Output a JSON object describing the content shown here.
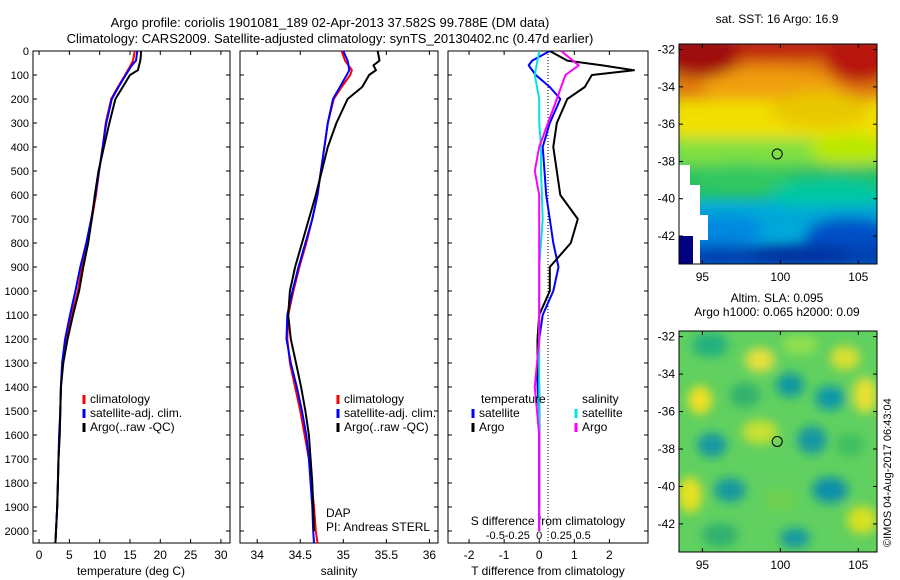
{
  "header": {
    "line1": "Argo profile: coriolis 1901081_189 02-Apr-2013 37.582S 99.788E (DM data)",
    "line2": "Climatology: CARS2009. Satellite-adjusted climatology: synTS_20130402.nc (0.47d earlier)"
  },
  "colors": {
    "climatology": "#ff0000",
    "satellite": "#0000ff",
    "argo": "#000000",
    "s_satellite": "#00e5e5",
    "s_argo": "#ff00ff"
  },
  "depth_axis": {
    "range": [
      0,
      2050
    ],
    "ticks": [
      0,
      100,
      200,
      300,
      400,
      500,
      600,
      700,
      800,
      900,
      1000,
      1100,
      1200,
      1300,
      1400,
      1500,
      1600,
      1700,
      1800,
      1900,
      2000
    ]
  },
  "chart_data": [
    {
      "id": "temperature",
      "type": "line",
      "xlabel": "temperature (deg C)",
      "xlim": [
        -1,
        31.5
      ],
      "xticks": [
        "0",
        "5",
        "10",
        "15",
        "20",
        "25",
        "30"
      ],
      "ylim": [
        0,
        2050
      ],
      "legend": [
        "climatology",
        "satellite-adj. clim.",
        "Argo(..raw -QC)"
      ],
      "series": [
        {
          "name": "climatology",
          "color": "#ff0000",
          "x": [
            15.8,
            15.5,
            15.1,
            14.2,
            13.0,
            11.9,
            11.0,
            10.5,
            9.9,
            9.4,
            8.7,
            7.9,
            7.1,
            6.4,
            5.4,
            4.5,
            3.9,
            3.6,
            3.5,
            3.4,
            3.2,
            3.1,
            3.0,
            2.8,
            2.7,
            2.6,
            2.5
          ],
          "y": [
            0,
            40,
            60,
            100,
            150,
            200,
            300,
            400,
            500,
            600,
            700,
            800,
            900,
            1000,
            1100,
            1200,
            1300,
            1400,
            1500,
            1600,
            1700,
            1800,
            1900,
            2000,
            2050,
            2060,
            2070
          ]
        },
        {
          "name": "satellite-adj. clim.",
          "color": "#0000ff",
          "x": [
            16.2,
            16.0,
            15.3,
            14.3,
            13.1,
            12.0,
            11.1,
            10.5,
            9.9,
            9.3,
            8.6,
            7.8,
            6.8,
            6.0,
            5.1,
            4.3,
            3.8,
            3.6,
            3.5,
            3.3,
            3.2,
            3.1,
            3.0,
            2.8,
            2.7
          ],
          "y": [
            0,
            40,
            60,
            100,
            150,
            200,
            300,
            400,
            500,
            600,
            700,
            800,
            900,
            1000,
            1100,
            1200,
            1300,
            1400,
            1500,
            1600,
            1700,
            1800,
            1900,
            2000,
            2050
          ]
        },
        {
          "name": "Argo(..raw -QC)",
          "color": "#000000",
          "x": [
            16.8,
            16.8,
            16.7,
            16.5,
            16.3,
            15.0,
            13.8,
            12.6,
            11.6,
            10.7,
            9.8,
            9.2,
            8.7,
            8.1,
            7.3,
            6.6,
            5.6,
            4.7,
            4.0,
            3.6,
            3.5,
            3.4,
            3.2,
            3.1,
            3.0,
            2.8,
            2.7
          ],
          "y": [
            0,
            20,
            40,
            60,
            80,
            100,
            150,
            200,
            300,
            400,
            500,
            600,
            700,
            800,
            900,
            1000,
            1100,
            1200,
            1300,
            1400,
            1500,
            1600,
            1700,
            1800,
            1900,
            2000,
            2050
          ]
        }
      ]
    },
    {
      "id": "salinity",
      "type": "line",
      "xlabel": "salinity",
      "xlim": [
        33.8,
        36.1
      ],
      "xticks": [
        "34",
        "34.5",
        "35",
        "35.5",
        "36"
      ],
      "ylim": [
        0,
        2050
      ],
      "legend": [
        "climatology",
        "satellite-adj. clim.",
        "Argo(..raw -QC)"
      ],
      "annotation": [
        "DAP",
        "PI: Andreas STERL"
      ],
      "series": [
        {
          "name": "climatology",
          "color": "#ff0000",
          "x": [
            34.98,
            35.02,
            35.1,
            35.08,
            34.98,
            34.89,
            34.82,
            34.78,
            34.74,
            34.7,
            34.64,
            34.57,
            34.49,
            34.42,
            34.36,
            34.35,
            34.38,
            34.44,
            34.5,
            34.55,
            34.6,
            34.63,
            34.66,
            34.68,
            34.7
          ],
          "y": [
            0,
            40,
            80,
            100,
            150,
            200,
            300,
            400,
            500,
            600,
            700,
            800,
            900,
            1000,
            1100,
            1200,
            1300,
            1400,
            1500,
            1600,
            1700,
            1800,
            1900,
            2000,
            2050
          ]
        },
        {
          "name": "satellite-adj. clim.",
          "color": "#0000ff",
          "x": [
            35.0,
            35.05,
            35.07,
            35.04,
            34.96,
            34.88,
            34.82,
            34.78,
            34.74,
            34.7,
            34.64,
            34.56,
            34.48,
            34.41,
            34.35,
            34.34,
            34.39,
            34.46,
            34.52,
            34.57,
            34.6,
            34.62,
            34.64,
            34.65,
            34.66
          ],
          "y": [
            0,
            40,
            80,
            100,
            150,
            200,
            300,
            400,
            500,
            600,
            700,
            800,
            900,
            1000,
            1100,
            1200,
            1300,
            1400,
            1500,
            1600,
            1700,
            1800,
            1900,
            2000,
            2050
          ]
        },
        {
          "name": "Argo(..raw -QC)",
          "color": "#000000",
          "x": [
            35.4,
            35.42,
            35.35,
            35.38,
            35.3,
            35.22,
            35.05,
            34.92,
            34.82,
            34.75,
            34.68,
            34.6,
            34.52,
            34.44,
            34.38,
            34.36,
            34.39,
            34.45,
            34.51,
            34.56,
            34.6,
            34.62,
            34.64,
            34.65,
            34.66
          ],
          "y": [
            0,
            40,
            60,
            80,
            100,
            150,
            200,
            300,
            400,
            500,
            600,
            700,
            800,
            900,
            1000,
            1100,
            1200,
            1300,
            1400,
            1500,
            1600,
            1700,
            1800,
            1900,
            2000
          ]
        }
      ]
    },
    {
      "id": "differences",
      "type": "line",
      "xlabel": "T difference from climatology",
      "xlim": [
        -2.6,
        3.1
      ],
      "xticks": [
        "-2",
        "-1",
        "0",
        "1",
        "2"
      ],
      "ylim": [
        0,
        2050
      ],
      "top_xlabel": "S difference from climatology",
      "top_xticks": [
        "-0.5",
        "-0.25",
        "0",
        "0.25",
        "0.5"
      ],
      "legend": {
        "temperature_title": "temperature",
        "salinity_title": "salinity",
        "temperature": [
          "satellite",
          "Argo"
        ],
        "salinity": [
          "satellite",
          "Argo"
        ]
      },
      "series": [
        {
          "name": "satellite",
          "group": "temperature",
          "color": "#0000ff",
          "x": [
            0.3,
            -0.2,
            -0.3,
            -0.1,
            0.3,
            0.6,
            0.3,
            0.1,
            0.15,
            0.2,
            0.3,
            0.4,
            0.55,
            0.4,
            0.1,
            0.0,
            -0.05,
            -0.05,
            0.0,
            0.0,
            0.0,
            0.0,
            0.0,
            0.0
          ],
          "y": [
            0,
            40,
            60,
            100,
            150,
            200,
            300,
            400,
            500,
            600,
            700,
            800,
            900,
            1000,
            1100,
            1200,
            1300,
            1400,
            1500,
            1600,
            1700,
            1800,
            1900,
            2000
          ]
        },
        {
          "name": "Argo",
          "group": "temperature",
          "color": "#000000",
          "x": [
            0.3,
            0.8,
            1.8,
            2.7,
            1.5,
            1.3,
            0.8,
            0.5,
            0.4,
            0.5,
            0.6,
            1.1,
            0.9,
            0.3,
            0.3,
            0.0,
            -0.05,
            -0.05,
            0.0,
            0.0,
            0.0,
            0.0,
            0.0,
            0.0
          ],
          "y": [
            0,
            40,
            60,
            80,
            100,
            150,
            200,
            300,
            400,
            500,
            600,
            700,
            800,
            900,
            1000,
            1100,
            1200,
            1300,
            1400,
            1500,
            1600,
            1700,
            1800,
            1900
          ]
        },
        {
          "name": "satellite",
          "group": "salinity",
          "color": "#00e5e5",
          "x": [
            0.0,
            -0.05,
            0.0,
            0.0,
            0.02,
            0.02,
            0.03,
            0.04,
            0.02,
            0.0,
            0.0,
            0.0,
            0.0,
            0.0,
            0.0,
            0.0
          ],
          "y": [
            0,
            100,
            200,
            300,
            400,
            500,
            600,
            700,
            800,
            900,
            1000,
            1100,
            1200,
            1400,
            1700,
            2000
          ]
        },
        {
          "name": "Argo",
          "group": "salinity",
          "color": "#ff00ff",
          "x": [
            0.25,
            0.45,
            0.3,
            0.2,
            0.1,
            0.0,
            -0.05,
            0.0,
            0.0,
            0.0,
            0.0,
            0.0,
            -0.05,
            0.0,
            0.0
          ],
          "y": [
            0,
            60,
            100,
            200,
            300,
            400,
            500,
            600,
            700,
            800,
            1000,
            1200,
            1400,
            1600,
            2000
          ]
        }
      ]
    },
    {
      "id": "sst_map",
      "type": "heatmap",
      "title": "sat. SST: 16 Argo: 16.9",
      "xticks": [
        "95",
        "100",
        "105"
      ],
      "yticks": [
        "-32",
        "-34",
        "-36",
        "-38",
        "-40",
        "-42"
      ],
      "xlim": [
        93.5,
        106.2
      ],
      "ylim": [
        -43.5,
        -31.7
      ],
      "marker": {
        "lon": 99.8,
        "lat": -37.6
      }
    },
    {
      "id": "sla_map",
      "type": "heatmap",
      "title": "Altim. SLA: 0.095",
      "subtitle": "Argo h1000: 0.065 h2000: 0.09",
      "xticks": [
        "95",
        "100",
        "105"
      ],
      "yticks": [
        "-32",
        "-34",
        "-36",
        "-38",
        "-40",
        "-42"
      ],
      "xlim": [
        93.5,
        106.2
      ],
      "ylim": [
        -43.5,
        -31.7
      ],
      "marker": {
        "lon": 99.8,
        "lat": -37.6
      }
    }
  ],
  "watermark": "©IMOS 04-Aug-2017 06:43:04"
}
